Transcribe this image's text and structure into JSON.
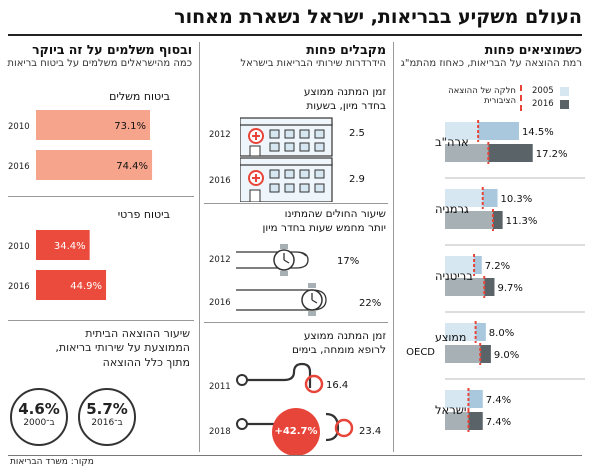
{
  "headline": "העולם משקיע בבריאות, ישראל נשארת מאחור",
  "source": "מקור: משרד הבריאות",
  "col_right": {
    "title": "כשמוציאים פחות",
    "subtitle": "רמת ההוצאה על הבריאות, כאחוז מהתמ\"ג",
    "legend": {
      "y2005": "2005",
      "y2016": "2016",
      "public": "חלקה של ההוצאה הציבורית"
    },
    "colors": {
      "light_2005": "#d6e7f1",
      "mid_2005": "#a9c8dd",
      "light_2016": "#a7b0b5",
      "dark_2016": "#5a6368",
      "public_marker": "#e8453a"
    }
  },
  "col_mid": {
    "title": "מקבלים פחות",
    "subtitle": "הידרדרות שירותי הבריאות בישראל",
    "sec1": {
      "label1": "זמן המתנה ממוצע",
      "label2": "בחדר מיון, בשעות",
      "rows": [
        {
          "year": "2012",
          "value": "2.5"
        },
        {
          "year": "2016",
          "value": "2.9"
        }
      ]
    },
    "sec2": {
      "label1": "שיעור החולים שהמתינו",
      "label2": "יותר מחמש שעות בחדר מיון",
      "rows": [
        {
          "year": "2012",
          "value": "17%"
        },
        {
          "year": "2016",
          "value": "22%"
        }
      ]
    },
    "sec3": {
      "label1": "זמן המתנה ממוצע",
      "label2": "לרופא מומחה, בימים",
      "rows": [
        {
          "year": "2011",
          "value": "16.4"
        },
        {
          "year": "2018",
          "value": "23.4"
        }
      ],
      "badge": "+42.7%"
    }
  },
  "col_left": {
    "title": "ובסוף משלמים על זה ביוקר",
    "subtitle": "כמה מהישראלים משלמים על ביטוח בריאות",
    "pub": {
      "label": "ביטוח משלים",
      "rows": [
        {
          "year": "2010",
          "value": "73.1%"
        },
        {
          "year": "2016",
          "value": "74.4%"
        }
      ],
      "color": "#f6a48c"
    },
    "priv": {
      "label": "ביטוח פרטי",
      "rows": [
        {
          "year": "2010",
          "value": "34.4%"
        },
        {
          "year": "2016",
          "value": "44.9%"
        }
      ],
      "color": "#ea4b3c"
    },
    "bottom_label1": "שיעור ההוצאה הביתית",
    "bottom_label2": "הממוצעת על שירותי בריאות,",
    "bottom_label3": "מתוך כלל ההוצאה",
    "c2000": {
      "value": "4.6%",
      "label": "ב־2000"
    },
    "c2016": {
      "value": "5.7%",
      "label": "ב־2016"
    }
  },
  "chart_data": [
    {
      "type": "bar",
      "title": "כשמוציאים פחות",
      "subtitle": "רמת ההוצאה על הבריאות, כאחוז מהתמ\"ג",
      "categories": [
        "ארה\"ב",
        "גרמניה",
        "בריטניה",
        "ממוצע OECD",
        "ישראל"
      ],
      "series": [
        {
          "name": "2005",
          "values": [
            14.5,
            10.3,
            7.2,
            8.0,
            7.4
          ]
        },
        {
          "name": "2016",
          "values": [
            17.2,
            11.3,
            9.7,
            9.0,
            7.4
          ]
        }
      ],
      "public_share_marker": {
        "name": "חלקה של ההוצאה הציבורית",
        "values_2005": [
          6.5,
          7.4,
          5.7,
          6.0,
          4.6
        ],
        "values_2016": [
          8.5,
          9.4,
          7.7,
          6.9,
          4.6
        ]
      },
      "labels": [
        "14.5%",
        "17.2%",
        "10.3%",
        "11.3%",
        "7.2%",
        "9.7%",
        "8.0%",
        "9.0%",
        "7.4%",
        "7.4%"
      ],
      "ylim": [
        0,
        18
      ]
    },
    {
      "type": "bar",
      "title": "ביטוח משלים",
      "categories": [
        "2010",
        "2016"
      ],
      "values": [
        73.1,
        74.4
      ],
      "ylim": [
        0,
        100
      ]
    },
    {
      "type": "bar",
      "title": "ביטוח פרטי",
      "categories": [
        "2010",
        "2016"
      ],
      "values": [
        34.4,
        44.9
      ],
      "ylim": [
        0,
        100
      ]
    },
    {
      "type": "table",
      "title": "זמן המתנה ממוצע בחדר מיון, בשעות",
      "categories": [
        "2012",
        "2016"
      ],
      "values": [
        2.5,
        2.9
      ]
    },
    {
      "type": "table",
      "title": "שיעור החולים שהמתינו יותר מחמש שעות בחדר מיון",
      "categories": [
        "2012",
        "2016"
      ],
      "values": [
        17,
        22
      ]
    },
    {
      "type": "table",
      "title": "זמן המתנה ממוצע לרופא מומחה, בימים",
      "categories": [
        "2011",
        "2018"
      ],
      "values": [
        16.4,
        23.4
      ]
    }
  ]
}
